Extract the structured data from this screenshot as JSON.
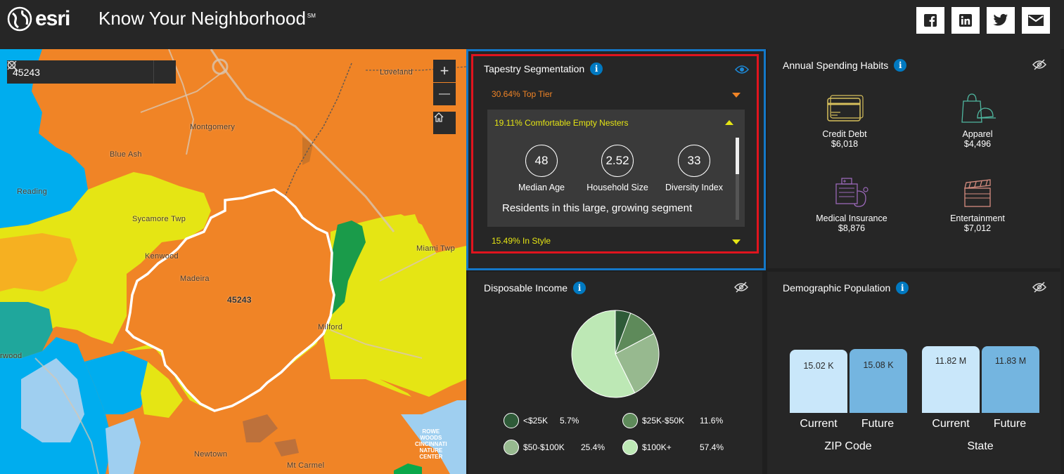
{
  "header": {
    "logo_text": "esri",
    "title": "Know Your Neighborhood",
    "title_mark": "SM",
    "social": [
      "facebook-icon",
      "linkedin-icon",
      "twitter-icon",
      "mail-icon"
    ]
  },
  "map": {
    "search_value": "45243",
    "zoom_in": "+",
    "zoom_out": "—",
    "labels": {
      "loveland": "Loveland",
      "montgomery": "Montgomery",
      "blue_ash": "Blue Ash",
      "reading": "Reading",
      "sycamore": "Sycamore Twp",
      "kenwood": "Kenwood",
      "madeira": "Madeira",
      "zip": "45243",
      "miami": "Miami Twp",
      "milford": "Milford",
      "erwood": "rwood",
      "newtown": "Newtown",
      "mt_carmel": "Mt Carmel",
      "rowe": "ROWE",
      "woods": "WOODS",
      "cincinnati": "CINCINNATI",
      "nature": "NATURE",
      "center": "CENTER"
    }
  },
  "tapestry": {
    "title": "Tapestry Segmentation",
    "rows": [
      {
        "label": "30.64% Top Tier",
        "color": "#f08426"
      },
      {
        "label": "19.11% Comfortable Empty Nesters",
        "color": "#e5e514"
      },
      {
        "label": "15.49% In Style",
        "color": "#e5e514"
      }
    ],
    "stats": [
      {
        "value": "48",
        "label": "Median Age"
      },
      {
        "value": "2.52",
        "label": "Household Size"
      },
      {
        "value": "33",
        "label": "Diversity Index"
      }
    ],
    "description": "Residents in this large, growing segment"
  },
  "spending": {
    "title": "Annual Spending Habits",
    "items": [
      {
        "label": "Credit Debt",
        "value": "$6,018"
      },
      {
        "label": "Apparel",
        "value": "$4,496"
      },
      {
        "label": "Medical Insurance",
        "value": "$8,876"
      },
      {
        "label": "Entertainment",
        "value": "$7,012"
      }
    ]
  },
  "disposable": {
    "title": "Disposable Income",
    "legend": [
      {
        "label": "<$25K",
        "pct": "5.7%",
        "color": "#2e5a38"
      },
      {
        "label": "$25K-$50K",
        "pct": "11.6%",
        "color": "#5e8a5a"
      },
      {
        "label": "$50-$100K",
        "pct": "25.4%",
        "color": "#97b98f"
      },
      {
        "label": "$100K+",
        "pct": "57.4%",
        "color": "#bde8b5"
      }
    ]
  },
  "demographic": {
    "title": "Demographic Population",
    "groups": [
      {
        "name": "ZIP Code",
        "current": "15.02 K",
        "future": "15.08 K"
      },
      {
        "name": "State",
        "current": "11.82 M",
        "future": "11.83 M"
      }
    ],
    "current_label": "Current",
    "future_label": "Future"
  },
  "chart_data": {
    "type": "pie",
    "title": "Disposable Income",
    "categories": [
      "<$25K",
      "$25K-$50K",
      "$50-$100K",
      "$100K+"
    ],
    "values": [
      5.7,
      11.6,
      25.4,
      57.4
    ],
    "colors": [
      "#2e5a38",
      "#5e8a5a",
      "#97b98f",
      "#bde8b5"
    ]
  }
}
